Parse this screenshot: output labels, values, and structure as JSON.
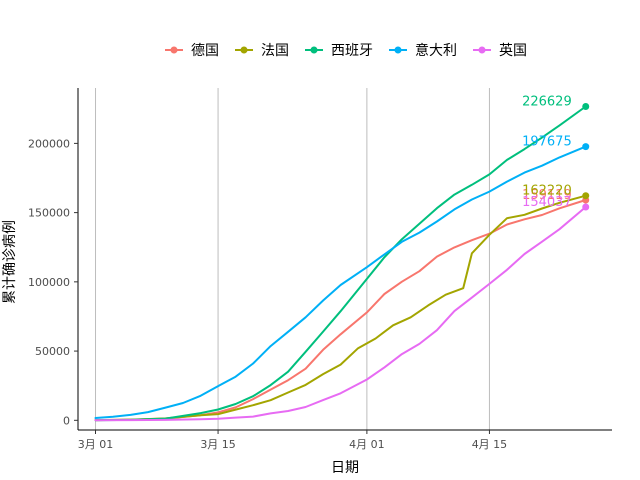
{
  "chart_data": {
    "type": "line",
    "xlabel": "日期",
    "ylabel": "累计确诊病例",
    "xlim": [
      "2020-02-28",
      "2020-04-29"
    ],
    "ylim": [
      -7000,
      240000
    ],
    "grid": "vertical major lines only",
    "legend_position": "top",
    "x_ticks": [
      {
        "date": "2020-03-01",
        "label": "3月 01"
      },
      {
        "date": "2020-03-15",
        "label": "3月 15"
      },
      {
        "date": "2020-04-01",
        "label": "4月 01"
      },
      {
        "date": "2020-04-15",
        "label": "4月 15"
      }
    ],
    "y_ticks": [
      0,
      50000,
      100000,
      150000,
      200000
    ],
    "series": [
      {
        "name": "德国",
        "color": "#F8766D",
        "end_label": "159119",
        "points": [
          [
            "2020-03-01",
            130
          ],
          [
            "2020-03-05",
            480
          ],
          [
            "2020-03-09",
            1200
          ],
          [
            "2020-03-13",
            3700
          ],
          [
            "2020-03-15",
            5800
          ],
          [
            "2020-03-17",
            9300
          ],
          [
            "2020-03-19",
            15300
          ],
          [
            "2020-03-21",
            22200
          ],
          [
            "2020-03-23",
            29000
          ],
          [
            "2020-03-25",
            37300
          ],
          [
            "2020-03-27",
            50900
          ],
          [
            "2020-03-29",
            62100
          ],
          [
            "2020-04-01",
            77900
          ],
          [
            "2020-04-03",
            91200
          ],
          [
            "2020-04-05",
            100100
          ],
          [
            "2020-04-07",
            107700
          ],
          [
            "2020-04-09",
            118200
          ],
          [
            "2020-04-11",
            124900
          ],
          [
            "2020-04-13",
            130100
          ],
          [
            "2020-04-15",
            134800
          ],
          [
            "2020-04-17",
            141400
          ],
          [
            "2020-04-19",
            145200
          ],
          [
            "2020-04-21",
            148300
          ],
          [
            "2020-04-23",
            153100
          ],
          [
            "2020-04-26",
            159119
          ]
        ]
      },
      {
        "name": "法国",
        "color": "#A3A500",
        "end_label": "162220",
        "points": [
          [
            "2020-03-01",
            130
          ],
          [
            "2020-03-05",
            420
          ],
          [
            "2020-03-09",
            1400
          ],
          [
            "2020-03-13",
            3700
          ],
          [
            "2020-03-15",
            4500
          ],
          [
            "2020-03-17",
            7700
          ],
          [
            "2020-03-19",
            10900
          ],
          [
            "2020-03-21",
            14500
          ],
          [
            "2020-03-23",
            20100
          ],
          [
            "2020-03-25",
            25600
          ],
          [
            "2020-03-27",
            33400
          ],
          [
            "2020-03-29",
            40200
          ],
          [
            "2020-03-31",
            52100
          ],
          [
            "2020-04-02",
            59100
          ],
          [
            "2020-04-04",
            68600
          ],
          [
            "2020-04-06",
            74400
          ],
          [
            "2020-04-08",
            83000
          ],
          [
            "2020-04-10",
            90700
          ],
          [
            "2020-04-12",
            95400
          ],
          [
            "2020-04-13",
            120600
          ],
          [
            "2020-04-15",
            134000
          ],
          [
            "2020-04-17",
            146000
          ],
          [
            "2020-04-19",
            148400
          ],
          [
            "2020-04-21",
            153000
          ],
          [
            "2020-04-23",
            157100
          ],
          [
            "2020-04-26",
            162220
          ]
        ]
      },
      {
        "name": "西班牙",
        "color": "#00BF7D",
        "end_label": "226629",
        "points": [
          [
            "2020-03-01",
            80
          ],
          [
            "2020-03-05",
            280
          ],
          [
            "2020-03-09",
            1230
          ],
          [
            "2020-03-13",
            5200
          ],
          [
            "2020-03-15",
            7800
          ],
          [
            "2020-03-17",
            11800
          ],
          [
            "2020-03-19",
            17400
          ],
          [
            "2020-03-21",
            25400
          ],
          [
            "2020-03-23",
            35100
          ],
          [
            "2020-03-25",
            49500
          ],
          [
            "2020-03-27",
            64100
          ],
          [
            "2020-03-29",
            78800
          ],
          [
            "2020-04-01",
            102100
          ],
          [
            "2020-04-03",
            117700
          ],
          [
            "2020-04-05",
            130800
          ],
          [
            "2020-04-07",
            141900
          ],
          [
            "2020-04-09",
            153200
          ],
          [
            "2020-04-11",
            163000
          ],
          [
            "2020-04-13",
            170100
          ],
          [
            "2020-04-15",
            177600
          ],
          [
            "2020-04-17",
            188100
          ],
          [
            "2020-04-19",
            195900
          ],
          [
            "2020-04-21",
            204200
          ],
          [
            "2020-04-23",
            213000
          ],
          [
            "2020-04-26",
            226629
          ]
        ]
      },
      {
        "name": "意大利",
        "color": "#00B0F6",
        "end_label": "197675",
        "points": [
          [
            "2020-03-01",
            1700
          ],
          [
            "2020-03-03",
            2500
          ],
          [
            "2020-03-05",
            3900
          ],
          [
            "2020-03-07",
            5900
          ],
          [
            "2020-03-09",
            9200
          ],
          [
            "2020-03-11",
            12500
          ],
          [
            "2020-03-13",
            17700
          ],
          [
            "2020-03-15",
            24700
          ],
          [
            "2020-03-17",
            31500
          ],
          [
            "2020-03-19",
            41000
          ],
          [
            "2020-03-21",
            53600
          ],
          [
            "2020-03-23",
            63900
          ],
          [
            "2020-03-25",
            74400
          ],
          [
            "2020-03-27",
            86500
          ],
          [
            "2020-03-29",
            97700
          ],
          [
            "2020-04-01",
            110600
          ],
          [
            "2020-04-03",
            119800
          ],
          [
            "2020-04-05",
            128900
          ],
          [
            "2020-04-07",
            135600
          ],
          [
            "2020-04-09",
            143600
          ],
          [
            "2020-04-11",
            152300
          ],
          [
            "2020-04-13",
            159500
          ],
          [
            "2020-04-15",
            165200
          ],
          [
            "2020-04-17",
            172400
          ],
          [
            "2020-04-19",
            178900
          ],
          [
            "2020-04-21",
            183900
          ],
          [
            "2020-04-23",
            189900
          ],
          [
            "2020-04-26",
            197675
          ]
        ]
      },
      {
        "name": "英国",
        "color": "#E76BF3",
        "end_label": "154037",
        "points": [
          [
            "2020-03-01",
            40
          ],
          [
            "2020-03-05",
            120
          ],
          [
            "2020-03-09",
            320
          ],
          [
            "2020-03-13",
            800
          ],
          [
            "2020-03-15",
            1140
          ],
          [
            "2020-03-17",
            1950
          ],
          [
            "2020-03-19",
            2700
          ],
          [
            "2020-03-21",
            5000
          ],
          [
            "2020-03-23",
            6700
          ],
          [
            "2020-03-25",
            9600
          ],
          [
            "2020-03-27",
            14600
          ],
          [
            "2020-03-29",
            19500
          ],
          [
            "2020-04-01",
            29500
          ],
          [
            "2020-04-03",
            38200
          ],
          [
            "2020-04-05",
            47800
          ],
          [
            "2020-04-07",
            55200
          ],
          [
            "2020-04-09",
            65100
          ],
          [
            "2020-04-11",
            78900
          ],
          [
            "2020-04-13",
            88600
          ],
          [
            "2020-04-15",
            98500
          ],
          [
            "2020-04-17",
            108700
          ],
          [
            "2020-04-19",
            120100
          ],
          [
            "2020-04-21",
            129000
          ],
          [
            "2020-04-23",
            138000
          ],
          [
            "2020-04-26",
            154037
          ]
        ]
      }
    ]
  }
}
